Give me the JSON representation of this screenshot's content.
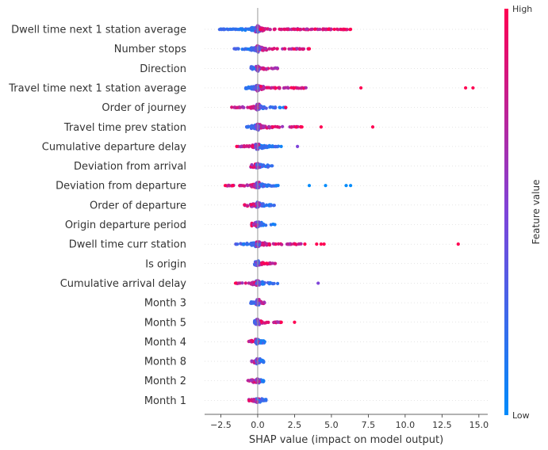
{
  "chart_data": {
    "type": "scatter",
    "subtype": "shap-beeswarm",
    "xlabel": "SHAP value (impact on model output)",
    "xlim": [
      -3.6,
      15.6
    ],
    "x_ticks": [
      -2.5,
      0.0,
      2.5,
      5.0,
      7.5,
      10.0,
      12.5,
      15.0
    ],
    "x_tick_labels": [
      "−2.5",
      "0.0",
      "2.5",
      "5.0",
      "7.5",
      "10.0",
      "12.5",
      "15.0"
    ],
    "grid": false,
    "colorbar": {
      "title": "Feature value",
      "high_label": "High",
      "low_label": "Low",
      "high_color": "#ff0052",
      "low_color": "#008bfb"
    },
    "features": [
      {
        "name": "Dwell time next 1 station average",
        "spread": [
          -2.6,
          6.4
        ],
        "low_side": "negative",
        "outliers": [
          [
            4.8,
            1
          ],
          [
            5.2,
            1
          ],
          [
            5.9,
            1
          ],
          [
            6.3,
            1
          ]
        ]
      },
      {
        "name": "Number stops",
        "spread": [
          -1.6,
          3.6
        ],
        "low_side": "negative",
        "outliers": [
          [
            3.5,
            1
          ]
        ]
      },
      {
        "name": "Direction",
        "spread": [
          -0.5,
          1.6
        ],
        "low_side": "negative",
        "outliers": []
      },
      {
        "name": "Travel time next 1 station average",
        "spread": [
          -0.9,
          3.3
        ],
        "low_side": "negative",
        "outliers": [
          [
            7.0,
            1
          ],
          [
            14.1,
            1
          ],
          [
            14.6,
            1
          ]
        ]
      },
      {
        "name": "Order of journey",
        "spread": [
          -1.8,
          1.9
        ],
        "low_side": "positive",
        "outliers": [
          [
            1.9,
            1
          ]
        ]
      },
      {
        "name": "Travel time prev station",
        "spread": [
          -0.8,
          3.0
        ],
        "low_side": "negative",
        "outliers": [
          [
            2.6,
            1
          ],
          [
            3.0,
            1
          ],
          [
            4.3,
            1
          ],
          [
            7.8,
            1
          ]
        ]
      },
      {
        "name": "Cumulative departure delay",
        "spread": [
          -1.5,
          1.6
        ],
        "low_side": "positive",
        "outliers": [
          [
            2.7,
            0.5
          ]
        ]
      },
      {
        "name": "Deviation from arrival",
        "spread": [
          -0.5,
          1.0
        ],
        "low_side": "positive",
        "outliers": []
      },
      {
        "name": "Deviation from departure",
        "spread": [
          -2.2,
          1.4
        ],
        "low_side": "positive",
        "outliers": [
          [
            -2.2,
            1
          ],
          [
            -1.7,
            1
          ],
          [
            3.5,
            0
          ],
          [
            4.6,
            0
          ],
          [
            6.0,
            0
          ],
          [
            6.3,
            0
          ]
        ]
      },
      {
        "name": "Order of departure",
        "spread": [
          -0.9,
          1.2
        ],
        "low_side": "positive",
        "outliers": []
      },
      {
        "name": "Origin departure period",
        "spread": [
          -0.4,
          1.2
        ],
        "low_side": "positive",
        "outliers": []
      },
      {
        "name": "Dwell time curr station",
        "spread": [
          -1.6,
          3.1
        ],
        "low_side": "negative",
        "outliers": [
          [
            3.2,
            1
          ],
          [
            4.0,
            1
          ],
          [
            4.3,
            1
          ],
          [
            4.5,
            1
          ],
          [
            13.6,
            1
          ]
        ]
      },
      {
        "name": "Is origin",
        "spread": [
          -0.2,
          1.2
        ],
        "low_side": "negative",
        "outliers": []
      },
      {
        "name": "Cumulative arrival delay",
        "spread": [
          -1.5,
          1.4
        ],
        "low_side": "positive",
        "outliers": [
          [
            -1.5,
            1
          ],
          [
            4.1,
            0.5
          ]
        ]
      },
      {
        "name": "Month 3",
        "spread": [
          -0.5,
          0.5
        ],
        "low_side": "negative",
        "outliers": []
      },
      {
        "name": "Month 5",
        "spread": [
          -0.2,
          1.6
        ],
        "low_side": "negative",
        "outliers": [
          [
            1.6,
            1
          ],
          [
            2.5,
            1
          ]
        ]
      },
      {
        "name": "Month 4",
        "spread": [
          -0.6,
          0.5
        ],
        "low_side": "positive",
        "outliers": []
      },
      {
        "name": "Month 8",
        "spread": [
          -0.4,
          0.4
        ],
        "low_side": "positive",
        "outliers": []
      },
      {
        "name": "Month 2",
        "spread": [
          -0.9,
          0.4
        ],
        "low_side": "positive",
        "outliers": []
      },
      {
        "name": "Month 1",
        "spread": [
          -0.6,
          0.6
        ],
        "low_side": "positive",
        "outliers": []
      }
    ]
  }
}
